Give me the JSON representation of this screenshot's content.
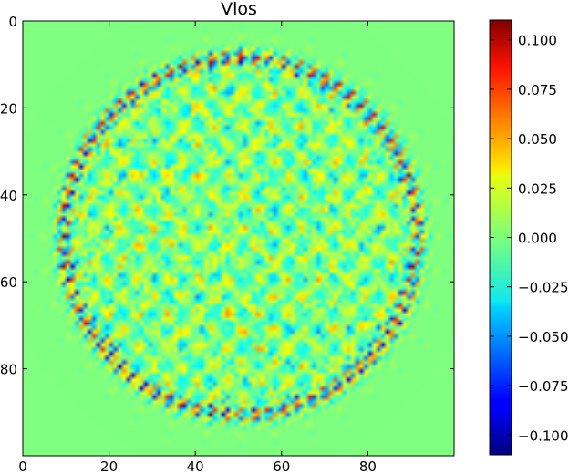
{
  "chart_data": {
    "type": "heatmap",
    "title": "Vlos",
    "x_ticks": [
      "0",
      "20",
      "40",
      "60",
      "80"
    ],
    "y_ticks": [
      "0",
      "20",
      "40",
      "60",
      "80"
    ],
    "x_range": [
      0,
      100
    ],
    "y_range": [
      0,
      100
    ],
    "y_inverted": true,
    "grid_size": [
      100,
      100
    ],
    "pattern": "circular ring of oscillating positive/negative values centred at (50, 49), radius about 41, with radial spikes extending outward; mottled mid-range values inside the ring; constant zero outside",
    "colormap": "jet",
    "colorbar": {
      "min": -0.11,
      "max": 0.11,
      "ticks": [
        "0.100",
        "0.075",
        "0.050",
        "0.025",
        "0.000",
        "−0.025",
        "−0.050",
        "−0.075",
        "−0.100"
      ],
      "tick_values": [
        0.1,
        0.075,
        0.05,
        0.025,
        0.0,
        -0.025,
        -0.05,
        -0.075,
        -0.1
      ]
    }
  }
}
